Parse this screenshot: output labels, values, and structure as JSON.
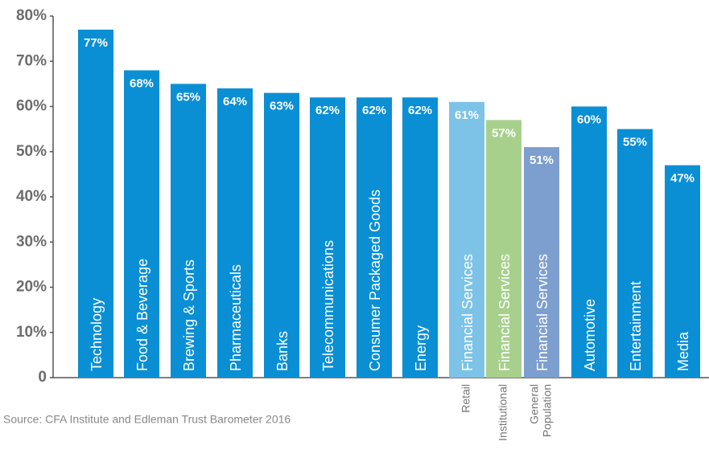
{
  "chart_data": {
    "type": "bar",
    "categories": [
      "Technology",
      "Food & Beverage",
      "Brewing & Sports",
      "Pharmaceuticals",
      "Banks",
      "Telecommunications",
      "Consumer Packaged Goods",
      "Energy",
      "Financial Services",
      "Financial Services",
      "Financial Services",
      "Automotive",
      "Entertainment",
      "Media"
    ],
    "sublabels": [
      null,
      null,
      null,
      null,
      null,
      null,
      null,
      null,
      [
        "Retail"
      ],
      [
        "Institutional"
      ],
      [
        "General",
        "Population"
      ],
      null,
      null,
      null
    ],
    "values": [
      77,
      68,
      65,
      64,
      63,
      62,
      62,
      62,
      61,
      57,
      51,
      60,
      55,
      47
    ],
    "value_labels": [
      "77%",
      "68%",
      "65%",
      "64%",
      "63%",
      "62%",
      "62%",
      "62%",
      "61%",
      "57%",
      "51%",
      "60%",
      "55%",
      "47%"
    ],
    "colors": [
      "#0a8fd4",
      "#0a8fd4",
      "#0a8fd4",
      "#0a8fd4",
      "#0a8fd4",
      "#0a8fd4",
      "#0a8fd4",
      "#0a8fd4",
      "#7dc3e8",
      "#a8d08d",
      "#7d9fcf",
      "#0a8fd4",
      "#0a8fd4",
      "#0a8fd4"
    ],
    "ylim": [
      0,
      80
    ],
    "yticks": [
      0,
      {
        "value": 10,
        "label": "10%"
      },
      {
        "value": 20,
        "label": "20%"
      },
      {
        "value": 30,
        "label": "30%"
      },
      {
        "value": 40,
        "label": "40%"
      },
      {
        "value": 50,
        "label": "50%"
      },
      {
        "value": 60,
        "label": "60%"
      },
      {
        "value": 70,
        "label": "70%"
      },
      {
        "value": 80,
        "label": "80%"
      }
    ],
    "source": "Source: CFA Institute and Edleman Trust Barometer 2016"
  }
}
